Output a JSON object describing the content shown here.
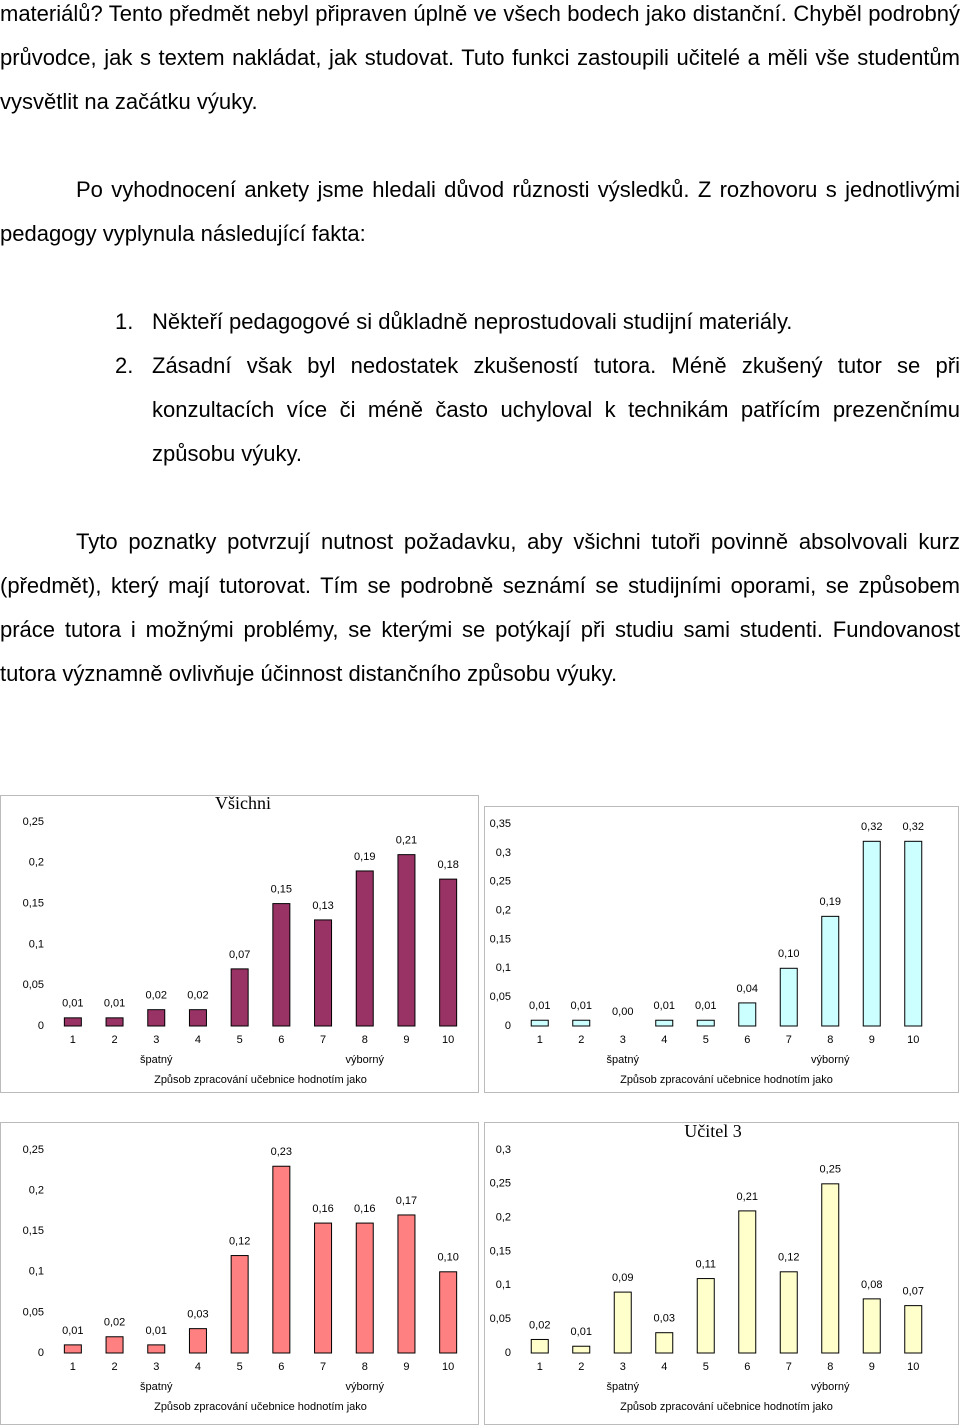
{
  "paragraphs": [
    "materiálů? Tento předmět nebyl připraven úplně ve všech bodech jako distanční. Chyběl podrobný průvodce, jak s textem nakládat, jak studovat. Tuto funkci zastoupili učitelé a měli vše studentům vysvětlit na začátku výuky.",
    "Po vyhodnocení ankety jsme hledali důvod různosti výsledků. Z rozhovoru s jednotlivými pedagogy vyplynula následující fakta:",
    "Tyto poznatky potvrzují nutnost požadavku, aby všichni tutoři povinně absolvovali kurz (předmět), který mají tutorovat. Tím se podrobně seznámí se studijními oporami, se způsobem práce tutora i možnými problémy, se kterými se potýkají při studiu sami studenti. Fundovanost tutora významně ovlivňuje účinnost distančního způsobu výuky."
  ],
  "list": [
    {
      "number": "1.",
      "text": "Někteří pedagogové si důkladně neprostudovali studijní materiály."
    },
    {
      "number": "2.",
      "text": "Zásadní však byl nedostatek zkušeností tutora. Méně zkušený tutor se při konzultacích více či méně často uchyloval k technikám patřícím prezenčnímu způsobu výuky."
    }
  ],
  "chart_data": [
    {
      "type": "bar",
      "title": "Všichni",
      "categories": [
        "1",
        "2",
        "3",
        "4",
        "5",
        "6",
        "7",
        "8",
        "9",
        "10"
      ],
      "values": [
        0.01,
        0.01,
        0.02,
        0.02,
        0.07,
        0.15,
        0.13,
        0.19,
        0.21,
        0.18
      ],
      "value_labels": [
        "0,01",
        "0,01",
        "0,02",
        "0,02",
        "0,07",
        "0,15",
        "0,13",
        "0,19",
        "0,21",
        "0,18"
      ],
      "color": "#993366",
      "ylim": [
        0,
        0.25
      ],
      "yticks": [
        {
          "value": 0,
          "label": "0"
        },
        {
          "value": 0.05,
          "label": "0,05"
        },
        {
          "value": 0.1,
          "label": "0,1"
        },
        {
          "value": 0.15,
          "label": "0,15"
        },
        {
          "value": 0.2,
          "label": "0,2"
        },
        {
          "value": 0.25,
          "label": "0,25"
        }
      ],
      "x_sublabels": [
        "špatný",
        "výborný"
      ],
      "x_label": "Způsob zpracování učebnice hodnotím jako"
    },
    {
      "type": "bar",
      "categories": [
        "1",
        "2",
        "3",
        "4",
        "5",
        "6",
        "7",
        "8",
        "9",
        "10"
      ],
      "values": [
        0.01,
        0.01,
        0.0,
        0.01,
        0.01,
        0.04,
        0.1,
        0.19,
        0.32,
        0.32
      ],
      "value_labels": [
        "0,01",
        "0,01",
        "0,00",
        "0,01",
        "0,01",
        "0,04",
        "0,10",
        "0,19",
        "0,32",
        "0,32"
      ],
      "color": "#ccffff",
      "ylim": [
        0,
        0.35
      ],
      "yticks": [
        {
          "value": 0,
          "label": "0"
        },
        {
          "value": 0.05,
          "label": "0,05"
        },
        {
          "value": 0.1,
          "label": "0,1"
        },
        {
          "value": 0.15,
          "label": "0,15"
        },
        {
          "value": 0.2,
          "label": "0,2"
        },
        {
          "value": 0.25,
          "label": "0,25"
        },
        {
          "value": 0.3,
          "label": "0,3"
        },
        {
          "value": 0.35,
          "label": "0,35"
        }
      ],
      "x_sublabels": [
        "špatný",
        "výborný"
      ],
      "x_label": "Způsob zpracování učebnice hodnotím jako"
    },
    {
      "type": "bar",
      "categories": [
        "1",
        "2",
        "3",
        "4",
        "5",
        "6",
        "7",
        "8",
        "9",
        "10"
      ],
      "values": [
        0.01,
        0.02,
        0.01,
        0.03,
        0.12,
        0.23,
        0.16,
        0.16,
        0.17,
        0.1
      ],
      "value_labels": [
        "0,01",
        "0,02",
        "0,01",
        "0,03",
        "0,12",
        "0,23",
        "0,16",
        "0,16",
        "0,17",
        "0,10"
      ],
      "color": "#ff8080",
      "ylim": [
        0,
        0.25
      ],
      "yticks": [
        {
          "value": 0,
          "label": "0"
        },
        {
          "value": 0.05,
          "label": "0,05"
        },
        {
          "value": 0.1,
          "label": "0,1"
        },
        {
          "value": 0.15,
          "label": "0,15"
        },
        {
          "value": 0.2,
          "label": "0,2"
        },
        {
          "value": 0.25,
          "label": "0,25"
        }
      ],
      "x_sublabels": [
        "špatný",
        "výborný"
      ],
      "x_label": "Způsob zpracování učebnice hodnotím jako"
    },
    {
      "type": "bar",
      "title": "Učitel 3",
      "categories": [
        "1",
        "2",
        "3",
        "4",
        "5",
        "6",
        "7",
        "8",
        "9",
        "10"
      ],
      "values": [
        0.02,
        0.01,
        0.09,
        0.03,
        0.11,
        0.21,
        0.12,
        0.25,
        0.08,
        0.07
      ],
      "value_labels": [
        "0,02",
        "0,01",
        "0,09",
        "0,03",
        "0,11",
        "0,21",
        "0,12",
        "0,25",
        "0,08",
        "0,07"
      ],
      "color": "#ffffcc",
      "ylim": [
        0,
        0.3
      ],
      "yticks": [
        {
          "value": 0,
          "label": "0"
        },
        {
          "value": 0.05,
          "label": "0,05"
        },
        {
          "value": 0.1,
          "label": "0,1"
        },
        {
          "value": 0.15,
          "label": "0,15"
        },
        {
          "value": 0.2,
          "label": "0,2"
        },
        {
          "value": 0.25,
          "label": "0,25"
        },
        {
          "value": 0.3,
          "label": "0,3"
        }
      ],
      "x_sublabels": [
        "špatný",
        "výborný"
      ],
      "x_label": "Způsob zpracování učebnice hodnotím jako"
    }
  ]
}
